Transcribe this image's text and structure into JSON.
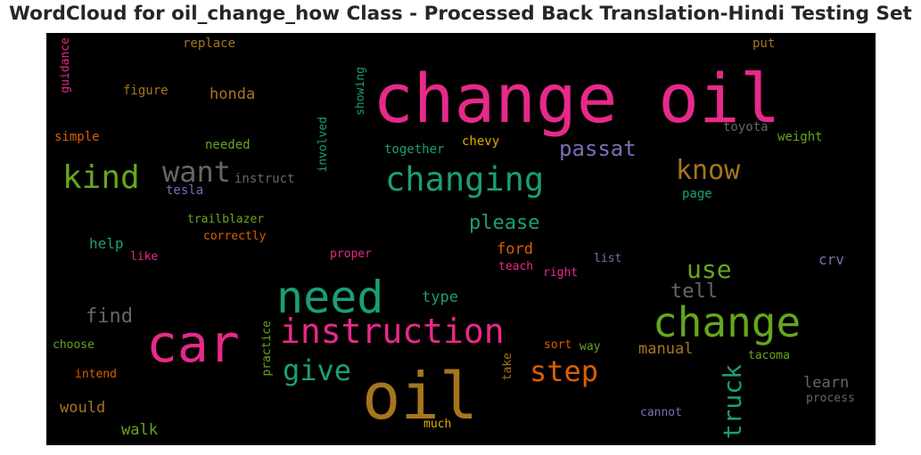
{
  "title": "WordCloud for oil_change_how Class - Processed Back Translation-Hindi Testing Set",
  "chart_data": {
    "type": "wordcloud",
    "background": "#000000",
    "colormap": "Dark2",
    "words": [
      {
        "text": "change oil",
        "color": "#e7298a"
      },
      {
        "text": "oil",
        "color": "#a6761d"
      },
      {
        "text": "car",
        "color": "#e7298a"
      },
      {
        "text": "need",
        "color": "#1b9e77"
      },
      {
        "text": "change",
        "color": "#66a61e"
      },
      {
        "text": "instruction",
        "color": "#e7298a"
      },
      {
        "text": "changing",
        "color": "#1b9e77"
      },
      {
        "text": "kind",
        "color": "#66a61e"
      },
      {
        "text": "want",
        "color": "#666666"
      },
      {
        "text": "know",
        "color": "#a6761d"
      },
      {
        "text": "step",
        "color": "#d95f02"
      },
      {
        "text": "give",
        "color": "#1b9e77"
      },
      {
        "text": "truck",
        "color": "#1b9e77"
      },
      {
        "text": "use",
        "color": "#66a61e"
      },
      {
        "text": "passat",
        "color": "#7570b3"
      },
      {
        "text": "please",
        "color": "#1b9e77"
      },
      {
        "text": "find",
        "color": "#666666"
      },
      {
        "text": "tell",
        "color": "#666666"
      },
      {
        "text": "honda",
        "color": "#a6761d"
      },
      {
        "text": "ford",
        "color": "#d95f02"
      },
      {
        "text": "type",
        "color": "#1b9e77"
      },
      {
        "text": "manual",
        "color": "#a6761d"
      },
      {
        "text": "would",
        "color": "#a6761d"
      },
      {
        "text": "learn",
        "color": "#666666"
      },
      {
        "text": "walk",
        "color": "#66a61e"
      },
      {
        "text": "crv",
        "color": "#7570b3"
      },
      {
        "text": "help",
        "color": "#1b9e77"
      },
      {
        "text": "figure",
        "color": "#a6761d"
      },
      {
        "text": "replace",
        "color": "#a6761d"
      },
      {
        "text": "put",
        "color": "#a6761d"
      },
      {
        "text": "guidance",
        "color": "#e7298a"
      },
      {
        "text": "showing",
        "color": "#1b9e77"
      },
      {
        "text": "toyota",
        "color": "#666666"
      },
      {
        "text": "weight",
        "color": "#66a61e"
      },
      {
        "text": "simple",
        "color": "#d95f02"
      },
      {
        "text": "needed",
        "color": "#66a61e"
      },
      {
        "text": "involved",
        "color": "#1b9e77"
      },
      {
        "text": "together",
        "color": "#1b9e77"
      },
      {
        "text": "chevy",
        "color": "#e6ab02"
      },
      {
        "text": "instruct",
        "color": "#666666"
      },
      {
        "text": "tesla",
        "color": "#7570b3"
      },
      {
        "text": "page",
        "color": "#1b9e77"
      },
      {
        "text": "trailblazer",
        "color": "#66a61e"
      },
      {
        "text": "correctly",
        "color": "#d95f02"
      },
      {
        "text": "like",
        "color": "#e7298a"
      },
      {
        "text": "proper",
        "color": "#e7298a"
      },
      {
        "text": "teach",
        "color": "#e7298a"
      },
      {
        "text": "right",
        "color": "#e7298a"
      },
      {
        "text": "list",
        "color": "#7570b3"
      },
      {
        "text": "choose",
        "color": "#66a61e"
      },
      {
        "text": "practice",
        "color": "#66a61e"
      },
      {
        "text": "sort",
        "color": "#d95f02"
      },
      {
        "text": "way",
        "color": "#66a61e"
      },
      {
        "text": "intend",
        "color": "#d95f02"
      },
      {
        "text": "take",
        "color": "#a6761d"
      },
      {
        "text": "tacoma",
        "color": "#66a61e"
      },
      {
        "text": "cannot",
        "color": "#7570b3"
      },
      {
        "text": "process",
        "color": "#666666"
      },
      {
        "text": "much",
        "color": "#e6ab02"
      }
    ]
  }
}
